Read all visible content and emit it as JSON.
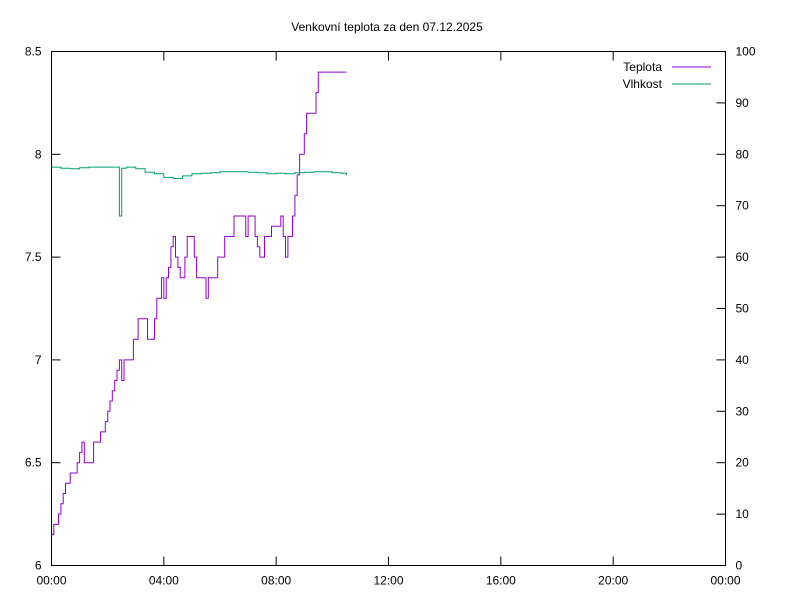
{
  "chart_data": {
    "type": "line",
    "title": "Venkovní teplota za den 07.12.2025",
    "xlabel": "",
    "ylabel": "",
    "y2label": "",
    "x_range_hours": [
      0,
      24
    ],
    "x_tick_labels": [
      "00:00",
      "04:00",
      "08:00",
      "12:00",
      "16:00",
      "20:00",
      "00:00"
    ],
    "ylim": [
      6,
      8.5
    ],
    "y_tick_labels": [
      "6",
      "6.5",
      "7",
      "7.5",
      "8",
      "8.5"
    ],
    "y2lim": [
      0,
      100
    ],
    "y2_tick_labels": [
      "0",
      "10",
      "20",
      "30",
      "40",
      "50",
      "60",
      "70",
      "80",
      "90",
      "100"
    ],
    "grid": false,
    "legend_position": "top-right",
    "series": [
      {
        "name": "Teplota",
        "axis": "y",
        "color": "#9400d3",
        "x": [
          "00:00",
          "00:05",
          "00:15",
          "00:20",
          "00:25",
          "00:30",
          "00:40",
          "00:55",
          "01:00",
          "01:05",
          "01:10",
          "01:15",
          "01:30",
          "01:45",
          "01:55",
          "02:00",
          "02:05",
          "02:10",
          "02:15",
          "02:20",
          "02:25",
          "02:30",
          "02:35",
          "02:40",
          "02:45",
          "02:55",
          "03:05",
          "03:15",
          "03:25",
          "03:40",
          "03:45",
          "03:55",
          "04:00",
          "04:05",
          "04:10",
          "04:15",
          "04:20",
          "04:25",
          "04:30",
          "04:35",
          "04:40",
          "04:45",
          "04:50",
          "05:00",
          "05:05",
          "05:10",
          "05:20",
          "05:25",
          "05:30",
          "05:35",
          "05:45",
          "05:55",
          "06:05",
          "06:10",
          "06:20",
          "06:30",
          "06:40",
          "06:55",
          "07:00",
          "07:10",
          "07:15",
          "07:20",
          "07:25",
          "07:35",
          "07:50",
          "08:10",
          "08:15",
          "08:20",
          "08:25",
          "08:35",
          "08:40",
          "08:45",
          "08:50",
          "09:00",
          "09:05",
          "09:10",
          "09:15",
          "09:20",
          "09:25",
          "09:30",
          "09:35",
          "09:40",
          "09:45",
          "09:50",
          "09:55",
          "10:00",
          "10:05",
          "10:10",
          "10:15",
          "10:20",
          "10:25",
          "10:30"
        ],
        "values": [
          6.15,
          6.2,
          6.25,
          6.3,
          6.35,
          6.4,
          6.45,
          6.5,
          6.55,
          6.6,
          6.5,
          6.5,
          6.6,
          6.65,
          6.7,
          6.75,
          6.8,
          6.85,
          6.9,
          6.95,
          7.0,
          6.9,
          7.0,
          7.0,
          7.0,
          7.1,
          7.2,
          7.2,
          7.1,
          7.2,
          7.3,
          7.4,
          7.3,
          7.4,
          7.45,
          7.55,
          7.6,
          7.5,
          7.45,
          7.4,
          7.4,
          7.5,
          7.6,
          7.6,
          7.5,
          7.4,
          7.4,
          7.4,
          7.3,
          7.4,
          7.4,
          7.5,
          7.5,
          7.6,
          7.6,
          7.7,
          7.7,
          7.6,
          7.7,
          7.7,
          7.6,
          7.55,
          7.5,
          7.6,
          7.65,
          7.7,
          7.6,
          7.5,
          7.6,
          7.7,
          7.8,
          7.9,
          8.0,
          8.1,
          8.2,
          8.2,
          8.2,
          8.2,
          8.3,
          8.4,
          8.4,
          8.4,
          8.4,
          8.4,
          8.4,
          8.4,
          8.4,
          8.4,
          8.4,
          8.4,
          8.4,
          8.4
        ]
      },
      {
        "name": "Vlhkost",
        "axis": "y2",
        "color": "#009e73",
        "x": [
          "00:00",
          "00:20",
          "00:40",
          "01:00",
          "01:20",
          "01:40",
          "02:00",
          "02:20",
          "02:25",
          "02:30",
          "02:40",
          "03:00",
          "03:20",
          "03:40",
          "04:00",
          "04:20",
          "04:40",
          "05:00",
          "05:20",
          "05:40",
          "06:00",
          "06:20",
          "06:40",
          "07:00",
          "07:20",
          "07:40",
          "08:00",
          "08:20",
          "08:40",
          "09:00",
          "09:20",
          "09:40",
          "10:00",
          "10:20",
          "10:30"
        ],
        "values": [
          77.5,
          77.3,
          77.2,
          77.4,
          77.5,
          77.5,
          77.5,
          77.5,
          68.0,
          77.3,
          77.5,
          77.2,
          76.5,
          76.2,
          75.5,
          75.3,
          75.8,
          76.2,
          76.3,
          76.4,
          76.6,
          76.6,
          76.6,
          76.5,
          76.4,
          76.2,
          76.3,
          76.2,
          76.4,
          76.5,
          76.6,
          76.6,
          76.4,
          76.3,
          76.0
        ]
      }
    ]
  }
}
